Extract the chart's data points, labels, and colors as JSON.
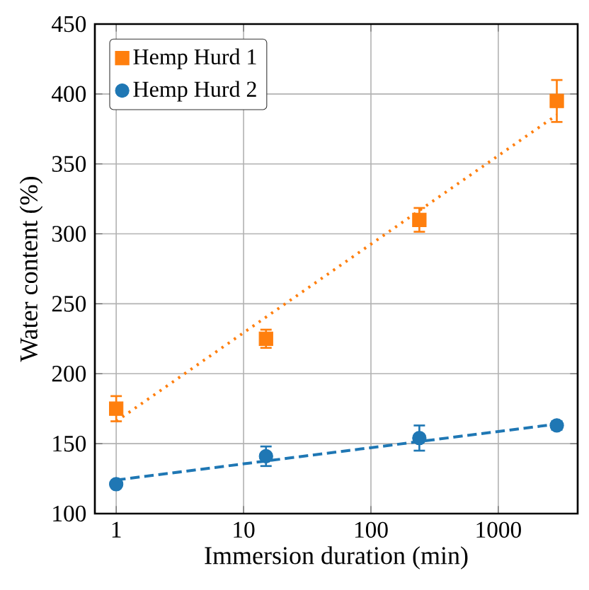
{
  "chart_data": {
    "type": "scatter",
    "xlabel": "Immersion duration (min)",
    "ylabel": "Water content (%)",
    "log": "x",
    "xlim": [
      0.68,
      4200
    ],
    "ylim": [
      100,
      450
    ],
    "xticks": [
      1,
      10,
      100,
      1000
    ],
    "yticks": [
      100,
      150,
      200,
      250,
      300,
      350,
      400,
      450
    ],
    "grid": true,
    "legend": "top left",
    "series": [
      {
        "name": "Hemp Hurd 1",
        "color": "#ff7f0e",
        "marker": "square",
        "x": [
          1,
          15,
          240,
          2880
        ],
        "values": [
          175,
          225,
          310,
          395
        ],
        "errors": [
          9,
          6.5,
          8.5,
          15
        ]
      },
      {
        "name": "Hemp Hurd 2",
        "color": "#1f77b4",
        "marker": "circle",
        "x": [
          1,
          15,
          240,
          2880
        ],
        "values": [
          121,
          141,
          154,
          163
        ],
        "errors": [
          2,
          7,
          9,
          3
        ]
      },
      {
        "type": "line",
        "color": "#ff7f0e",
        "line_style": "dotted",
        "marker": "none",
        "x": [
          1,
          2880
        ],
        "values": [
          166,
          385
        ]
      },
      {
        "type": "line",
        "color": "#1f77b4",
        "line_style": "dashed",
        "marker": "none",
        "x": [
          1,
          2880
        ],
        "values": [
          124,
          164
        ]
      }
    ]
  }
}
